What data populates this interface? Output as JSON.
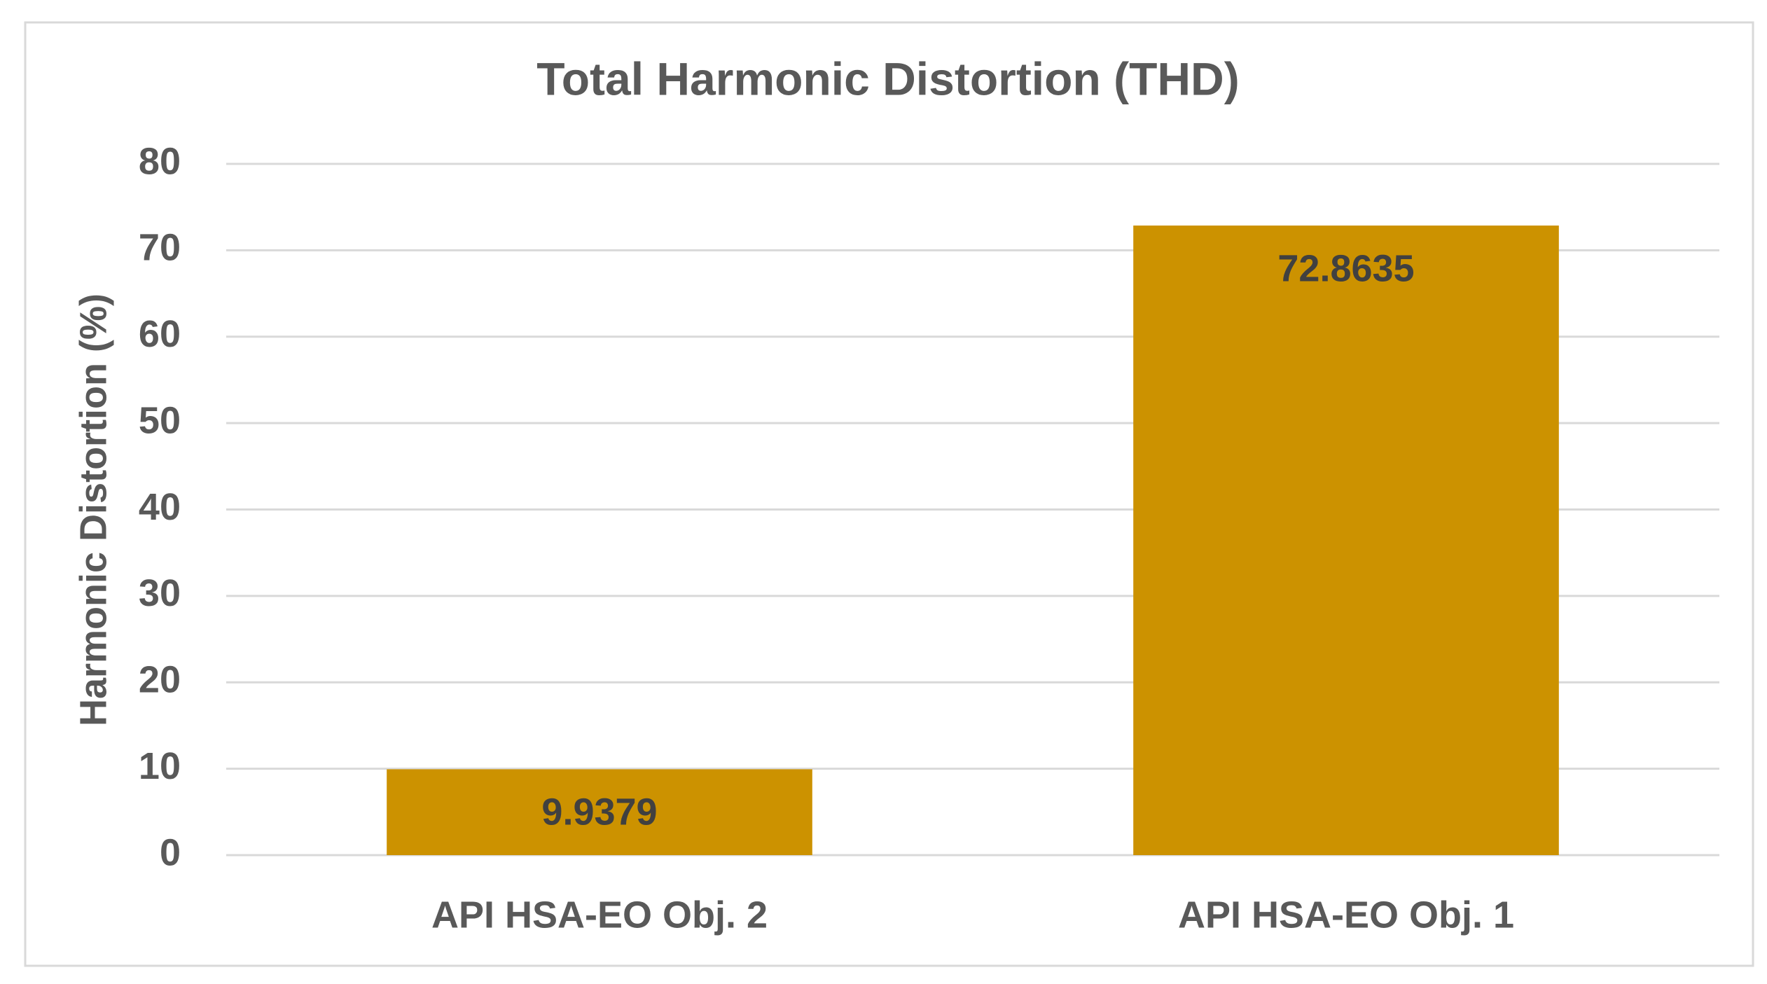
{
  "chart_data": {
    "type": "bar",
    "title": "Total Harmonic Distortion (THD)",
    "y_label": "Harmonic Distortion (%)",
    "categories": [
      "API HSA-EO Obj. 2",
      "API HSA-EO Obj. 1"
    ],
    "values": [
      9.9379,
      72.8635
    ],
    "color": "#cc9200",
    "ylim": [
      0,
      80
    ],
    "yticks": [
      0,
      10,
      20,
      30,
      40,
      50,
      60,
      70,
      80
    ],
    "grid": true
  }
}
